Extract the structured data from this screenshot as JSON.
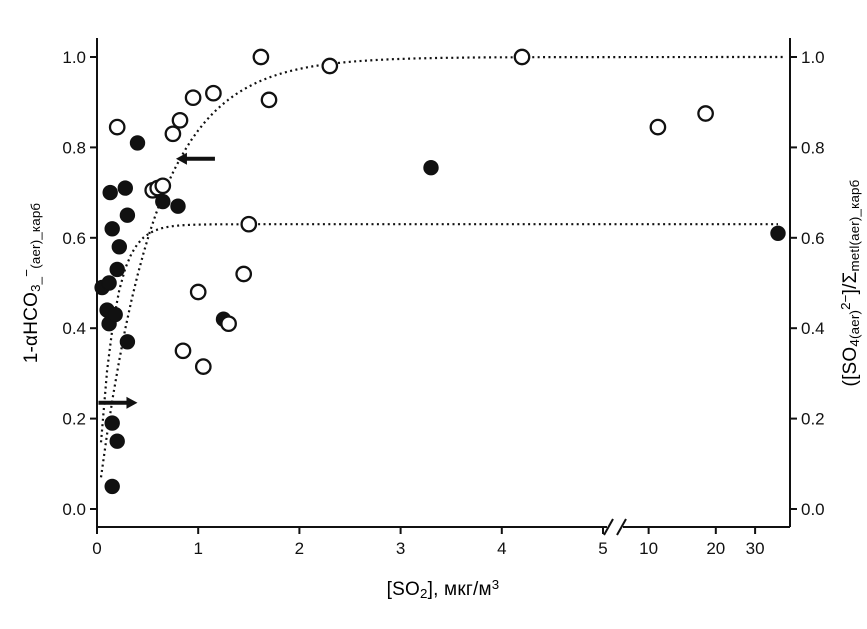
{
  "figure": {
    "background": "#ffffff",
    "ink": "#111111"
  },
  "chart_data": {
    "type": "scatter",
    "title": "",
    "xlabel": "[SO₂], мкг/м³",
    "ylabel_left": "1-αHCO₃⁻₍ₐₑᵣ₎_карб",
    "ylabel_right": "([SO₄₍ₐₑᵣ₎²⁻]/Σmetl(aer)_карб",
    "xlabel_parts": [
      {
        "t": "[SO",
        "st": "n"
      },
      {
        "t": "2",
        "st": "sub"
      },
      {
        "t": "], мкг/м",
        "st": "n"
      },
      {
        "t": "3",
        "st": "sup"
      }
    ],
    "ylabel_left_parts": [
      {
        "t": "1-αHCO",
        "st": "n"
      },
      {
        "t": "3_",
        "st": "sub"
      },
      {
        "t": "−",
        "st": "sup"
      },
      {
        "t": "(aer)_карб",
        "st": "sub"
      }
    ],
    "ylabel_right_parts": [
      {
        "t": "([SO",
        "st": "n"
      },
      {
        "t": "4(aer)",
        "st": "sub"
      },
      {
        "t": "2−",
        "st": "sup"
      },
      {
        "t": "]/Σ",
        "st": "n"
      },
      {
        "t": "metl(aer)_карб",
        "st": "sub"
      }
    ],
    "x_axis": {
      "break_between": true,
      "segments": [
        {
          "min": 0,
          "max": 5,
          "scale": "linear",
          "ticks": [
            {
              "v": 0,
              "l": "0"
            },
            {
              "v": 1,
              "l": "1"
            },
            {
              "v": 2,
              "l": "2"
            },
            {
              "v": 3,
              "l": "3"
            },
            {
              "v": 4,
              "l": "4"
            },
            {
              "v": 5,
              "l": "5"
            }
          ]
        },
        {
          "min": 8,
          "max": 43,
          "scale": "log",
          "ticks": [
            {
              "v": 10,
              "l": "10"
            },
            {
              "v": 20,
              "l": "20"
            },
            {
              "v": 30,
              "l": "30"
            }
          ]
        }
      ]
    },
    "y_axis_left": {
      "min": 0,
      "max": 1,
      "ticks": [
        {
          "v": 0,
          "l": "0.0"
        },
        {
          "v": 0.2,
          "l": "0.2"
        },
        {
          "v": 0.4,
          "l": "0.4"
        },
        {
          "v": 0.6,
          "l": "0.6"
        },
        {
          "v": 0.8,
          "l": "0.8"
        },
        {
          "v": 1,
          "l": "1.0"
        }
      ]
    },
    "y_axis_right": {
      "min": 0,
      "max": 1,
      "ticks": [
        {
          "v": 0,
          "l": "0.0"
        },
        {
          "v": 0.2,
          "l": "0.2"
        },
        {
          "v": 0.4,
          "l": "0.4"
        },
        {
          "v": 0.6,
          "l": "0.6"
        },
        {
          "v": 0.8,
          "l": "0.8"
        },
        {
          "v": 1,
          "l": "1.0"
        }
      ]
    },
    "series": [
      {
        "name": "bicarbonate-deficit-left-axis",
        "axis": "left",
        "marker": "filled-circle",
        "points": [
          [
            0.05,
            0.49
          ],
          [
            0.1,
            0.44
          ],
          [
            0.12,
            0.5
          ],
          [
            0.12,
            0.41
          ],
          [
            0.13,
            0.7
          ],
          [
            0.15,
            0.62
          ],
          [
            0.15,
            0.19
          ],
          [
            0.15,
            0.05
          ],
          [
            0.18,
            0.43
          ],
          [
            0.2,
            0.53
          ],
          [
            0.2,
            0.15
          ],
          [
            0.22,
            0.58
          ],
          [
            0.28,
            0.71
          ],
          [
            0.3,
            0.65
          ],
          [
            0.3,
            0.37
          ],
          [
            0.4,
            0.81
          ],
          [
            0.65,
            0.68
          ],
          [
            0.8,
            0.67
          ],
          [
            1.25,
            0.42
          ],
          [
            3.3,
            0.755
          ],
          [
            38,
            0.61
          ]
        ]
      },
      {
        "name": "sulfate-fraction-right-axis",
        "axis": "right",
        "marker": "open-circle",
        "points": [
          [
            0.2,
            0.845
          ],
          [
            0.55,
            0.705
          ],
          [
            0.6,
            0.71
          ],
          [
            0.65,
            0.715
          ],
          [
            0.75,
            0.83
          ],
          [
            0.82,
            0.86
          ],
          [
            0.95,
            0.91
          ],
          [
            0.85,
            0.35
          ],
          [
            1.0,
            0.48
          ],
          [
            1.05,
            0.315
          ],
          [
            1.15,
            0.92
          ],
          [
            1.3,
            0.41
          ],
          [
            1.45,
            0.52
          ],
          [
            1.5,
            0.63
          ],
          [
            1.62,
            1.0
          ],
          [
            1.7,
            0.905
          ],
          [
            2.3,
            0.98
          ],
          [
            4.2,
            1.0
          ],
          [
            11,
            0.845
          ],
          [
            18,
            0.875
          ]
        ]
      }
    ],
    "fit_curves": [
      {
        "name": "upper-fit",
        "plateau": 1.0,
        "rate": 0.55,
        "extend_to": 40,
        "style": "dotted"
      },
      {
        "name": "lower-fit",
        "plateau": 0.63,
        "rate": 0.15,
        "extend_to": 38,
        "style": "dotted"
      }
    ],
    "arrows": [
      {
        "name": "left-axis-arrow",
        "dir": "left",
        "x_tip": 0.78,
        "y": 0.775,
        "length": 30
      },
      {
        "name": "right-axis-arrow",
        "dir": "right",
        "x_tip": 0.4,
        "y": 0.235,
        "length": 30
      }
    ]
  }
}
